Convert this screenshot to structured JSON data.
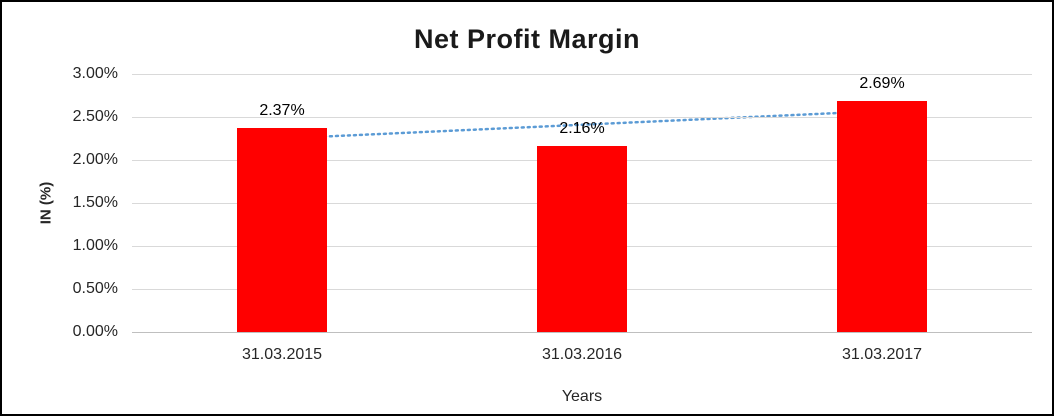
{
  "chart_data": {
    "type": "bar",
    "title": "Net Profit Margin",
    "xlabel": "Years",
    "ylabel": "IN (%)",
    "categories": [
      "31.03.2015",
      "31.03.2016",
      "31.03.2017"
    ],
    "values": [
      2.37,
      2.16,
      2.69
    ],
    "data_labels": [
      "2.37%",
      "2.16%",
      "2.69%"
    ],
    "ylim": [
      0,
      3
    ],
    "yticks": [
      0,
      0.5,
      1,
      1.5,
      2,
      2.5,
      3
    ],
    "ytick_labels": [
      "0.00%",
      "0.50%",
      "1.00%",
      "1.50%",
      "2.00%",
      "2.50%",
      "3.00%"
    ],
    "grid": true,
    "legend": "none",
    "bar_color": "#FF0000",
    "trendline": {
      "style": "dotted",
      "color": "#5B9BD5",
      "start_value": 2.25,
      "end_value": 2.57
    }
  }
}
